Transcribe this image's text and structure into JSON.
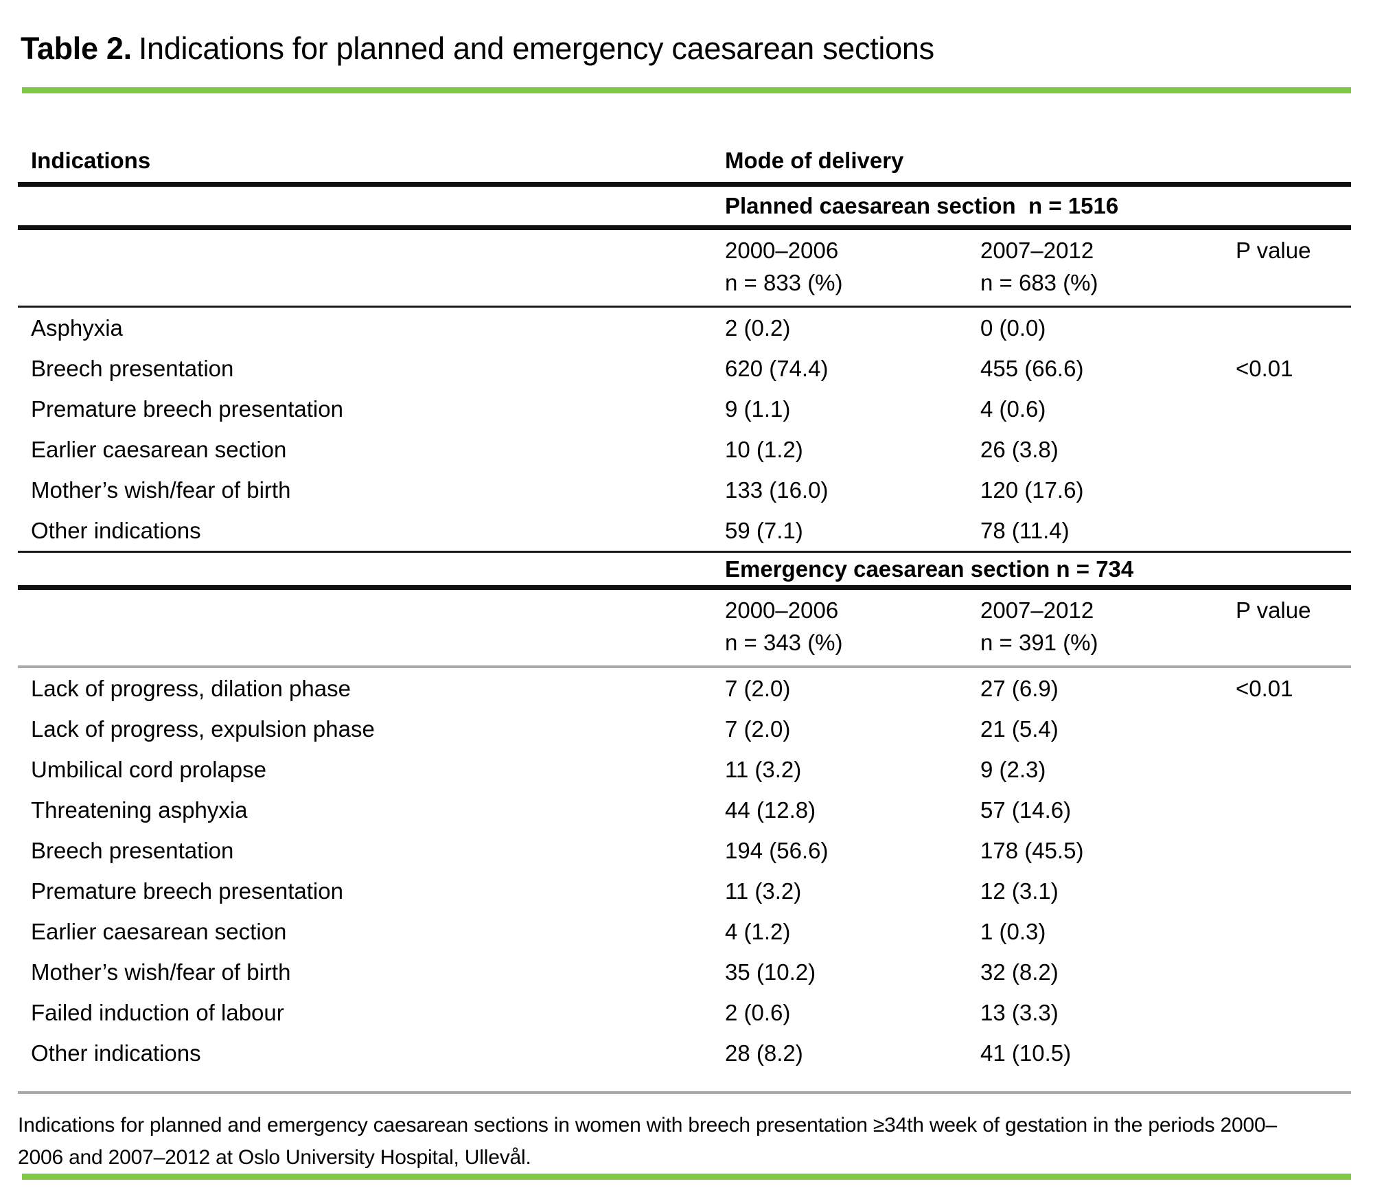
{
  "title": {
    "prefix": "Table 2.",
    "text": "Indications for planned and emergency caesarean sections"
  },
  "table": {
    "col_headers": {
      "indications": "Indications",
      "mode_of_delivery": "Mode of delivery"
    },
    "sections": [
      {
        "header": "Planned caesarean section  n = 1516",
        "period1": "2000–2006",
        "period1_n": "n = 833 (%)",
        "period2": "2007–2012",
        "period2_n": "n = 683 (%)",
        "pvalue_label": "P value",
        "rows": [
          {
            "label": "Asphyxia",
            "v1": "2 (0.2)",
            "v2": "0 (0.0)",
            "p": ""
          },
          {
            "label": "Breech presentation",
            "v1": "620 (74.4)",
            "v2": "455 (66.6)",
            "p": "<0.01"
          },
          {
            "label": "Premature breech presentation",
            "v1": "9 (1.1)",
            "v2": "4 (0.6)",
            "p": ""
          },
          {
            "label": "Earlier caesarean section",
            "v1": "10 (1.2)",
            "v2": "26 (3.8)",
            "p": ""
          },
          {
            "label": "Mother’s wish/fear of birth",
            "v1": "133 (16.0)",
            "v2": "120 (17.6)",
            "p": ""
          },
          {
            "label": "Other indications",
            "v1": "59 (7.1)",
            "v2": "78 (11.4)",
            "p": ""
          }
        ]
      },
      {
        "header": "Emergency caesarean section n = 734",
        "period1": "2000–2006",
        "period1_n": "n = 343 (%)",
        "period2": "2007–2012",
        "period2_n": "n = 391 (%)",
        "pvalue_label": "P value",
        "rows": [
          {
            "label": "Lack of progress, dilation phase",
            "v1": "7 (2.0)",
            "v2": "27 (6.9)",
            "p": "<0.01"
          },
          {
            "label": "Lack of progress, expulsion phase",
            "v1": "7 (2.0)",
            "v2": "21 (5.4)",
            "p": ""
          },
          {
            "label": "Umbilical cord prolapse",
            "v1": "11 (3.2)",
            "v2": "9 (2.3)",
            "p": ""
          },
          {
            "label": "Threatening asphyxia",
            "v1": "44 (12.8)",
            "v2": "57 (14.6)",
            "p": ""
          },
          {
            "label": "Breech presentation",
            "v1": "194 (56.6)",
            "v2": "178 (45.5)",
            "p": ""
          },
          {
            "label": "Premature breech presentation",
            "v1": "11 (3.2)",
            "v2": "12 (3.1)",
            "p": ""
          },
          {
            "label": "Earlier caesarean section",
            "v1": "4 (1.2)",
            "v2": "1 (0.3)",
            "p": ""
          },
          {
            "label": "Mother’s wish/fear of birth",
            "v1": "35 (10.2)",
            "v2": "32 (8.2)",
            "p": ""
          },
          {
            "label": "Failed induction of labour",
            "v1": "2 (0.6)",
            "v2": "13 (3.3)",
            "p": ""
          },
          {
            "label": "Other indications",
            "v1": "28 (8.2)",
            "v2": "41 (10.5)",
            "p": ""
          }
        ]
      }
    ]
  },
  "footnote": "Indications for planned and emergency caesarean sections in women with breech presentation ≥34th week of gestation in the periods 2000–2006 and 2007–2012 at Oslo University Hospital, Ullevål.",
  "colors": {
    "accent_green": "#7EC845",
    "rule_black": "#111111",
    "rule_gray": "#a9a9a9"
  }
}
